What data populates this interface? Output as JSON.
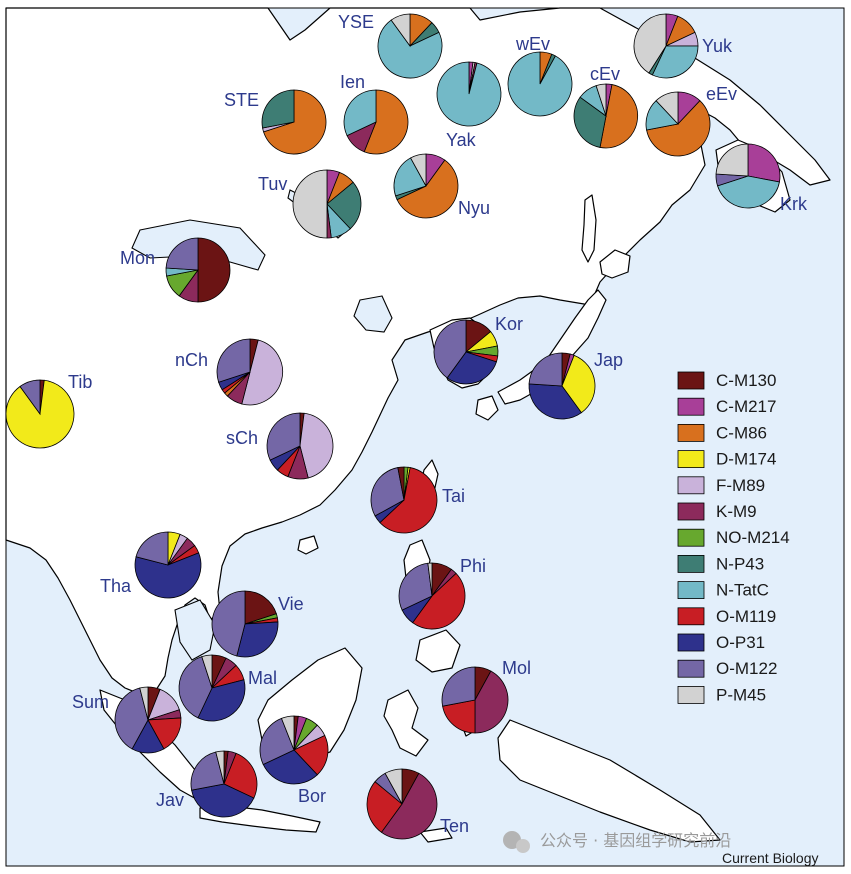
{
  "haplogroups": [
    {
      "id": "C-M130",
      "label": "C-M130",
      "color": "#6b1414"
    },
    {
      "id": "C-M217",
      "label": "C-M217",
      "color": "#a83f98"
    },
    {
      "id": "C-M86",
      "label": "C-M86",
      "color": "#d8701e"
    },
    {
      "id": "D-M174",
      "label": "D-M174",
      "color": "#f2ea1a"
    },
    {
      "id": "F-M89",
      "label": "F-M89",
      "color": "#c9b2da"
    },
    {
      "id": "K-M9",
      "label": "K-M9",
      "color": "#8c2a5c"
    },
    {
      "id": "NO-M214",
      "label": "NO-M214",
      "color": "#67a82e"
    },
    {
      "id": "N-P43",
      "label": "N-P43",
      "color": "#3e7d74"
    },
    {
      "id": "N-TatC",
      "label": "N-TatC",
      "color": "#73b9c7"
    },
    {
      "id": "O-M119",
      "label": "O-M119",
      "color": "#c81e24"
    },
    {
      "id": "O-P31",
      "label": "O-P31",
      "color": "#2e318c"
    },
    {
      "id": "O-M122",
      "label": "O-M122",
      "color": "#7467a6"
    },
    {
      "id": "P-M45",
      "label": "P-M45",
      "color": "#d2d2d2"
    }
  ],
  "populations": [
    {
      "id": "YSE",
      "label": "YSE",
      "slices": {
        "C-M86": 12,
        "N-P43": 6,
        "N-TatC": 72,
        "P-M45": 10
      }
    },
    {
      "id": "Yuk",
      "label": "Yuk",
      "slices": {
        "C-M217": 6,
        "C-M86": 12,
        "F-M89": 7,
        "N-TatC": 32,
        "N-P43": 2,
        "P-M45": 41
      }
    },
    {
      "id": "wEv",
      "label": "wEv",
      "slices": {
        "C-M86": 6,
        "N-P43": 2,
        "N-TatC": 92
      }
    },
    {
      "id": "Ien",
      "label": "Ien",
      "slices": {
        "C-M86": 56,
        "K-M9": 12,
        "N-TatC": 32
      }
    },
    {
      "id": "STE",
      "label": "STE",
      "slices": {
        "C-M86": 70,
        "F-M89": 2,
        "N-P43": 28
      }
    },
    {
      "id": "Yak",
      "label": "Yak",
      "slices": {
        "C-M217": 2,
        "P-M45": 1,
        "K-M9": 1,
        "N-TatC": 96
      }
    },
    {
      "id": "cEv",
      "label": "cEv",
      "slices": {
        "C-M217": 3,
        "C-M86": 50,
        "N-P43": 32,
        "N-TatC": 10,
        "P-M45": 5
      }
    },
    {
      "id": "eEv",
      "label": "eEv",
      "slices": {
        "C-M217": 12,
        "C-M86": 60,
        "N-TatC": 16,
        "P-M45": 12
      }
    },
    {
      "id": "Tuv",
      "label": "Tuv",
      "slices": {
        "C-M217": 6,
        "C-M86": 8,
        "N-P43": 24,
        "N-TatC": 10,
        "K-M9": 2,
        "P-M45": 50
      }
    },
    {
      "id": "Nyu",
      "label": "Nyu",
      "slices": {
        "C-M217": 10,
        "C-M86": 58,
        "N-P43": 2,
        "N-TatC": 22,
        "P-M45": 8
      }
    },
    {
      "id": "Krk",
      "label": "Krk",
      "slices": {
        "C-M217": 28,
        "N-TatC": 42,
        "O-M122": 6,
        "P-M45": 24
      }
    },
    {
      "id": "Mon",
      "label": "Mon",
      "slices": {
        "C-M130": 50,
        "K-M9": 10,
        "NO-M214": 12,
        "N-TatC": 4,
        "O-M122": 24
      }
    },
    {
      "id": "Kor",
      "label": "Kor",
      "slices": {
        "C-M130": 14,
        "D-M174": 8,
        "NO-M214": 5,
        "O-M119": 3,
        "O-P31": 30,
        "O-M122": 40
      }
    },
    {
      "id": "nCh",
      "label": "nCh",
      "slices": {
        "C-M130": 4,
        "F-M89": 50,
        "K-M9": 8,
        "C-M86": 2,
        "O-M119": 2,
        "O-P31": 4,
        "O-M122": 30
      }
    },
    {
      "id": "Jap",
      "label": "Jap",
      "slices": {
        "C-M130": 4,
        "C-M217": 2,
        "D-M174": 34,
        "O-P31": 36,
        "O-M122": 24
      }
    },
    {
      "id": "Tib",
      "label": "Tib",
      "slices": {
        "C-M130": 2,
        "D-M174": 88,
        "O-M122": 10
      }
    },
    {
      "id": "sCh",
      "label": "sCh",
      "slices": {
        "C-M130": 2,
        "F-M89": 44,
        "K-M9": 10,
        "O-M119": 6,
        "O-P31": 6,
        "O-M122": 32
      }
    },
    {
      "id": "Tai",
      "label": "Tai",
      "slices": {
        "NO-M214": 2,
        "D-M174": 1,
        "O-M119": 60,
        "O-P31": 4,
        "O-M122": 30,
        "C-M130": 3
      }
    },
    {
      "id": "Tha",
      "label": "Tha",
      "slices": {
        "D-M174": 6,
        "F-M89": 4,
        "K-M9": 5,
        "O-M119": 4,
        "O-P31": 60,
        "O-M122": 21
      }
    },
    {
      "id": "Phi",
      "label": "Phi",
      "slices": {
        "C-M130": 10,
        "K-M9": 3,
        "O-M119": 47,
        "O-P31": 8,
        "O-M122": 30,
        "P-M45": 2
      }
    },
    {
      "id": "Vie",
      "label": "Vie",
      "slices": {
        "C-M130": 20,
        "NO-M214": 2,
        "O-M119": 2,
        "O-P31": 30,
        "O-M122": 46
      }
    },
    {
      "id": "Mol",
      "label": "Mol",
      "slices": {
        "C-M130": 8,
        "K-M9": 42,
        "O-M119": 22,
        "O-M122": 28
      }
    },
    {
      "id": "Mal",
      "label": "Mal",
      "slices": {
        "C-M130": 7,
        "K-M9": 6,
        "O-M119": 8,
        "O-P31": 36,
        "O-M122": 38,
        "P-M45": 5
      }
    },
    {
      "id": "Sum",
      "label": "Sum",
      "slices": {
        "C-M130": 6,
        "F-M89": 14,
        "K-M9": 4,
        "O-M119": 18,
        "O-P31": 16,
        "O-M122": 38,
        "P-M45": 4
      }
    },
    {
      "id": "Bor",
      "label": "Bor",
      "slices": {
        "C-M130": 2,
        "C-M217": 4,
        "NO-M214": 6,
        "F-M89": 6,
        "O-M119": 20,
        "O-P31": 30,
        "O-M122": 26,
        "P-M45": 6
      }
    },
    {
      "id": "Jav",
      "label": "Jav",
      "slices": {
        "C-M130": 2,
        "K-M9": 4,
        "O-M119": 26,
        "O-P31": 40,
        "O-M122": 24,
        "P-M45": 4
      }
    },
    {
      "id": "Ten",
      "label": "Ten",
      "slices": {
        "C-M130": 8,
        "K-M9": 52,
        "O-M119": 26,
        "O-M122": 6,
        "P-M45": 8
      }
    }
  ],
  "colors": {
    "sea": "#e3effb",
    "land": "#ffffff",
    "coast": "#000000",
    "label": "#2d3a8c"
  },
  "credit": "Current Biology",
  "watermark": "公众号 · 基因组学研究前沿"
}
